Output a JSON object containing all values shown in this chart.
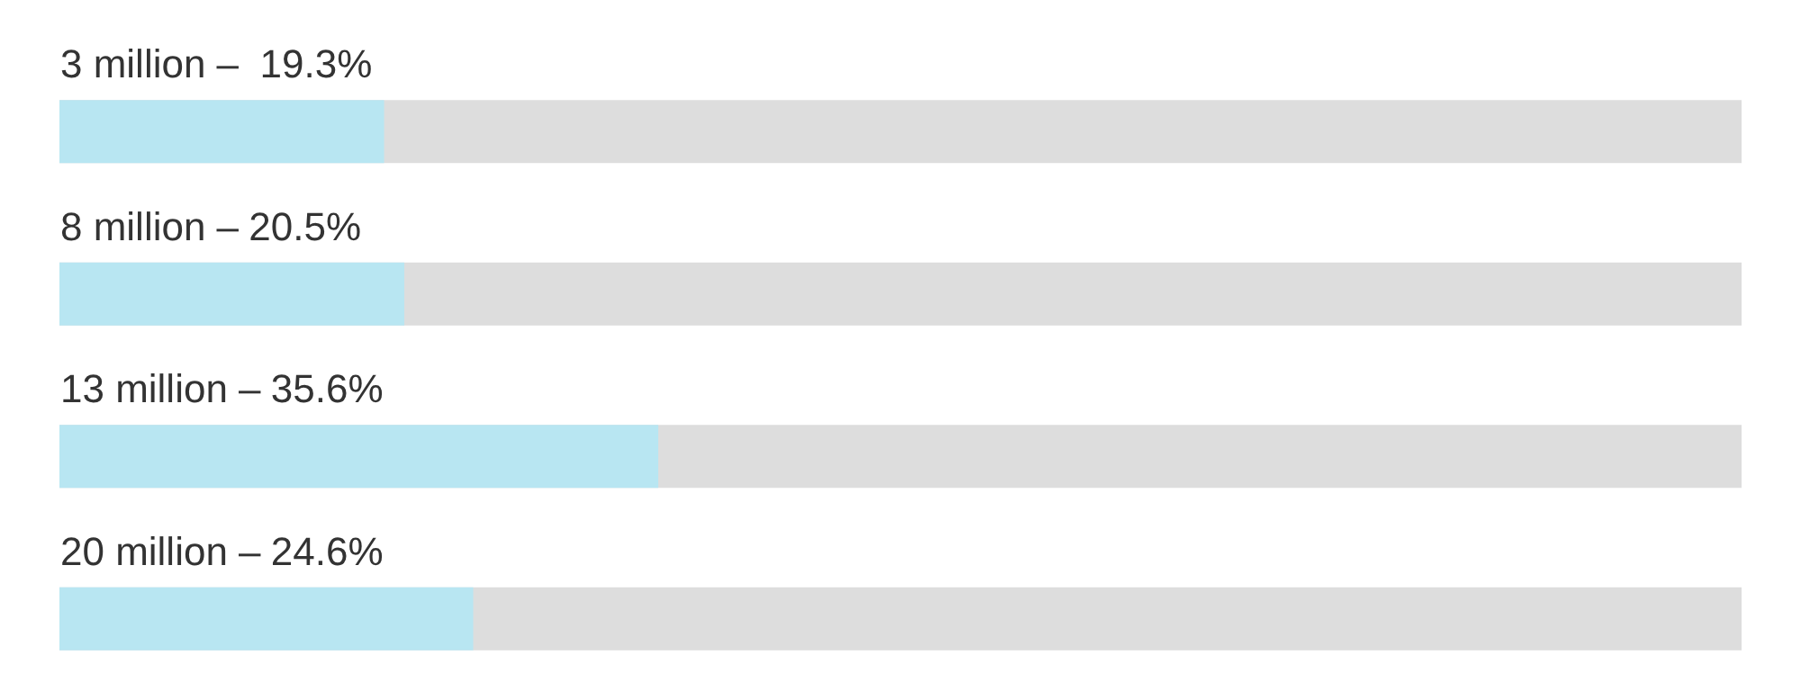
{
  "chart_data": {
    "type": "bar",
    "orientation": "horizontal",
    "categories": [
      "3 million  –",
      "8 million –",
      "13 million –",
      "20 million –"
    ],
    "series": [
      {
        "color": "#b8e6f2",
        "values": [
          19.3,
          20.5,
          35.6,
          24.6
        ],
        "value_labels": [
          "19.3%",
          "20.5%",
          "35.6%",
          "24.6%"
        ]
      }
    ],
    "xlim": [
      0,
      100
    ],
    "tick_labels": "y"
  }
}
